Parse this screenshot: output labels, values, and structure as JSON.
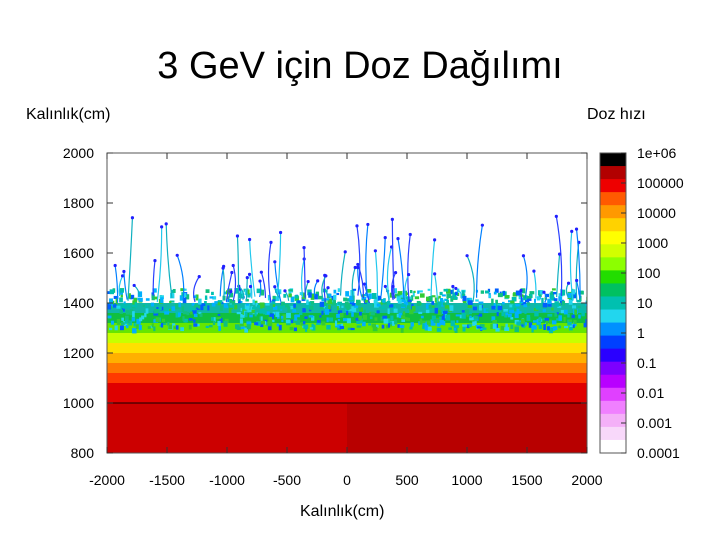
{
  "page": {
    "title": "3 GeV için Doz Dağılımı",
    "y_axis_label": "Kalınlık(cm)",
    "colorbar_label": "Doz hızı",
    "x_axis_label": "Kalınlık(cm)"
  },
  "chart_data": {
    "type": "heatmap",
    "title": "3 GeV için Doz Dağılımı",
    "xlabel": "Kalınlık(cm)",
    "ylabel": "Kalınlık(cm)",
    "colorbar_label": "Doz hızı",
    "xlim": [
      -2000,
      2000
    ],
    "ylim": [
      800,
      2000
    ],
    "x_ticks": [
      "-2000",
      "-1500",
      "-1000",
      "-500",
      "0",
      "500",
      "1000",
      "1500",
      "2000"
    ],
    "y_ticks": [
      "2000",
      "1800",
      "1600",
      "1400",
      "1200",
      "1000",
      "800"
    ],
    "boundary_line_y": 1000,
    "dose_front_y_range": [
      1350,
      1700
    ],
    "color_scale": {
      "scale": "log",
      "levels": [
        "1e+06",
        "100000",
        "10000",
        "1000",
        "100",
        "10",
        "1",
        "0.1",
        "0.01",
        "0.001",
        "0.0001"
      ],
      "colors": [
        "#000000",
        "#b20000",
        "#ee0000",
        "#ff5a00",
        "#ff9900",
        "#ffd200",
        "#ffff00",
        "#d2ff00",
        "#8cff00",
        "#22dd00",
        "#00c060",
        "#00c0b0",
        "#22d6ee",
        "#0090ff",
        "#0040ff",
        "#2a00ff",
        "#7d00ff",
        "#b800ff",
        "#e040ff",
        "#f080ff",
        "#f4b0f8",
        "#f8d8fa",
        "#ffffff"
      ]
    }
  }
}
